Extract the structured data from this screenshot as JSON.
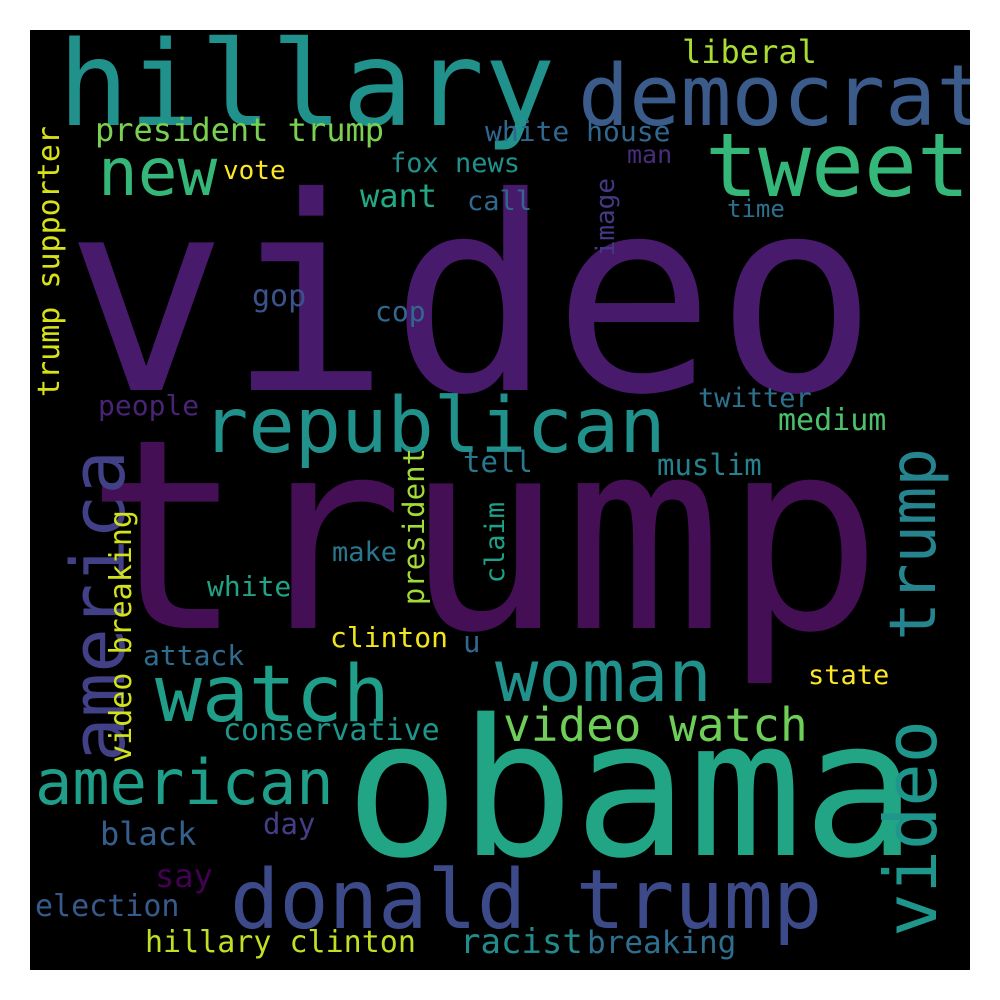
{
  "palette": {
    "background": "#000000",
    "frame_border": "#ffffff",
    "dark_purple": "#440f54",
    "purple": "#481a6c",
    "indigo": "#3d4a89",
    "blue": "#355f8d",
    "steel_blue": "#2f6c8e",
    "teal": "#25848e",
    "green_teal": "#21918c",
    "sea_green": "#1fa088",
    "green": "#35b779",
    "light_green": "#6ece58",
    "lime": "#b5de2b",
    "yellow": "#fde725"
  },
  "words": [
    {
      "key": "video",
      "text": "video",
      "color": "#481a6c"
    },
    {
      "key": "trump",
      "text": "trump",
      "color": "#440f54"
    },
    {
      "key": "obama",
      "text": "obama",
      "color": "#21a585"
    },
    {
      "key": "hillary",
      "text": "hillary",
      "color": "#21918c"
    },
    {
      "key": "democrat",
      "text": "democrat",
      "color": "#3b5b8b"
    },
    {
      "key": "tweet",
      "text": "tweet",
      "color": "#35b779"
    },
    {
      "key": "new",
      "text": "new",
      "color": "#35b779"
    },
    {
      "key": "republican",
      "text": "republican",
      "color": "#21918c"
    },
    {
      "key": "donald-trump",
      "text": "donald trump",
      "color": "#3d4a89"
    },
    {
      "key": "watch",
      "text": "watch",
      "color": "#1f9e89"
    },
    {
      "key": "woman",
      "text": "woman",
      "color": "#21918c"
    },
    {
      "key": "american",
      "text": "american",
      "color": "#1f9e89"
    },
    {
      "key": "america",
      "text": "america",
      "color": "#424086"
    },
    {
      "key": "trump-right",
      "text": "trump",
      "color": "#25848e"
    },
    {
      "key": "video-right",
      "text": "video",
      "color": "#1f968b"
    },
    {
      "key": "video-watch",
      "text": "video watch",
      "color": "#6ece58"
    },
    {
      "key": "president-trump",
      "text": "president trump",
      "color": "#7ad151"
    },
    {
      "key": "white-house",
      "text": "white house",
      "color": "#31668e"
    },
    {
      "key": "fox-news",
      "text": "fox news",
      "color": "#21908d"
    },
    {
      "key": "liberal",
      "text": "liberal",
      "color": "#aadc32"
    },
    {
      "key": "trump-supporter",
      "text": "trump supporter",
      "color": "#d8e219"
    },
    {
      "key": "vote",
      "text": "vote",
      "color": "#fde725"
    },
    {
      "key": "want",
      "text": "want",
      "color": "#22a884"
    },
    {
      "key": "call",
      "text": "call",
      "color": "#31688e"
    },
    {
      "key": "man",
      "text": "man",
      "color": "#472d7b"
    },
    {
      "key": "time",
      "text": "time",
      "color": "#2d708e"
    },
    {
      "key": "image",
      "text": "image",
      "color": "#443983"
    },
    {
      "key": "gop",
      "text": "gop",
      "color": "#3b528b"
    },
    {
      "key": "cop",
      "text": "cop",
      "color": "#31688e"
    },
    {
      "key": "people",
      "text": "people",
      "color": "#482475"
    },
    {
      "key": "twitter",
      "text": "twitter",
      "color": "#2c728e"
    },
    {
      "key": "medium",
      "text": "medium",
      "color": "#4ac16d"
    },
    {
      "key": "tell",
      "text": "tell",
      "color": "#2a788e"
    },
    {
      "key": "muslim",
      "text": "muslim",
      "color": "#26828e"
    },
    {
      "key": "claim",
      "text": "claim",
      "color": "#1fa088"
    },
    {
      "key": "president",
      "text": "president",
      "color": "#a2da37"
    },
    {
      "key": "make",
      "text": "make",
      "color": "#2a788e"
    },
    {
      "key": "white",
      "text": "white",
      "color": "#20a386"
    },
    {
      "key": "video-breaking",
      "text": "video breaking",
      "color": "#d2e21b"
    },
    {
      "key": "clinton",
      "text": "clinton",
      "color": "#f1e51d"
    },
    {
      "key": "u",
      "text": "u",
      "color": "#31688e"
    },
    {
      "key": "attack",
      "text": "attack",
      "color": "#2f6c8e"
    },
    {
      "key": "state",
      "text": "state",
      "color": "#fde725"
    },
    {
      "key": "conservative",
      "text": "conservative",
      "color": "#1f968b"
    },
    {
      "key": "black",
      "text": "black",
      "color": "#355f8d"
    },
    {
      "key": "day",
      "text": "day",
      "color": "#433e85"
    },
    {
      "key": "say",
      "text": "say",
      "color": "#440154"
    },
    {
      "key": "election",
      "text": "election",
      "color": "#375a8c"
    },
    {
      "key": "hillary-clinton",
      "text": "hillary clinton",
      "color": "#c0df25"
    },
    {
      "key": "racist",
      "text": "racist",
      "color": "#228c8d"
    },
    {
      "key": "breaking",
      "text": "breaking",
      "color": "#2e6e8e"
    }
  ]
}
